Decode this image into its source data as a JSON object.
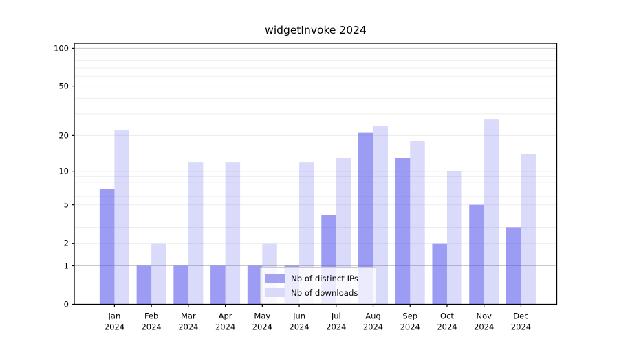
{
  "chart": {
    "title": "widgetInvoke 2024"
  },
  "chart_data": {
    "type": "bar",
    "title": "widgetInvoke 2024",
    "categories": [
      "Jan",
      "Feb",
      "Mar",
      "Apr",
      "May",
      "Jun",
      "Jul",
      "Aug",
      "Sep",
      "Oct",
      "Nov",
      "Dec"
    ],
    "year_label": "2024",
    "series": [
      {
        "name": "Nb of distinct IPs",
        "color": "#a3a3f1",
        "fill_rgba": "rgba(85,85,238,0.58)",
        "values": [
          7,
          1,
          1,
          1,
          1,
          1,
          4,
          21,
          13,
          2,
          5,
          3
        ]
      },
      {
        "name": "Nb of downloads",
        "color": "#d9d9f8",
        "fill_rgba": "rgba(85,85,238,0.22)",
        "values": [
          22,
          2,
          12,
          12,
          2,
          12,
          13,
          24,
          18,
          10,
          27,
          14
        ]
      }
    ],
    "yticks": [
      0,
      1,
      2,
      5,
      10,
      20,
      50,
      100
    ],
    "minor_gridlines": [
      2,
      3,
      4,
      5,
      6,
      7,
      8,
      9,
      20,
      30,
      40,
      50,
      60,
      70,
      80,
      90
    ],
    "major_gridlines": [
      1,
      10,
      100
    ],
    "scale": "log10(1+v)",
    "ylim": [
      0,
      110
    ],
    "grid": "horizontal",
    "legend_position": "lower center",
    "colors": {
      "major_grid": "#c8c8c8",
      "minor_grid": "#ececec",
      "axis": "#000000",
      "text": "#000000"
    }
  }
}
